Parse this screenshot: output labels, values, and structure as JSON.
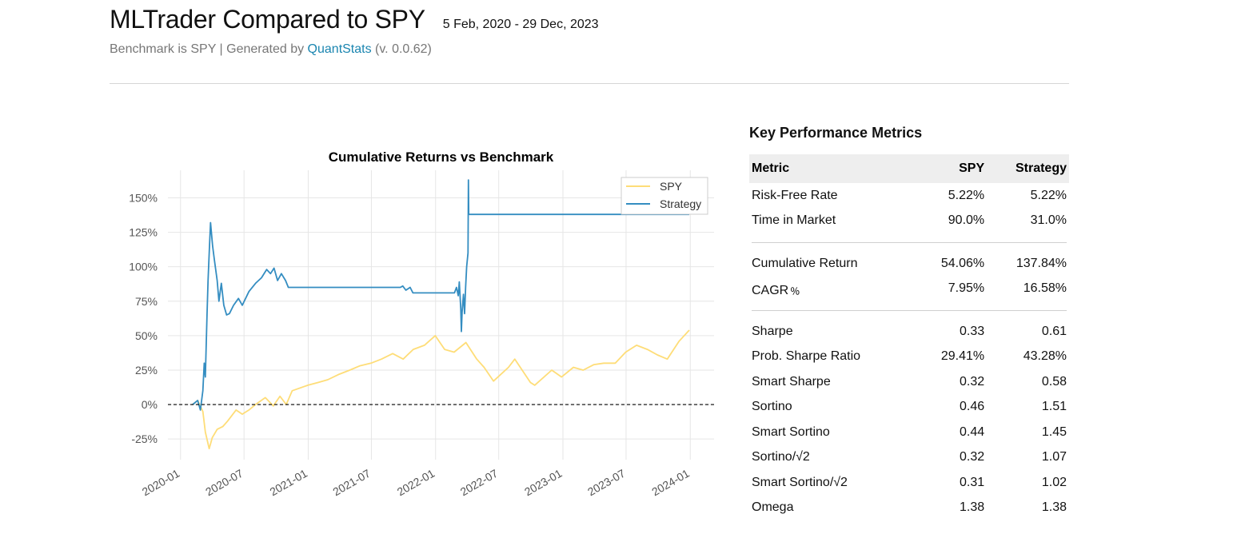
{
  "header": {
    "title": "MLTrader Compared to SPY",
    "date_range": "5 Feb, 2020 - 29 Dec, 2023",
    "subtitle_prefix": "Benchmark is SPY | Generated by ",
    "subtitle_link": "QuantStats",
    "subtitle_suffix": " (v. 0.0.62)"
  },
  "chart_data": {
    "type": "line",
    "title": "Cumulative Returns vs Benchmark",
    "xlabel": "",
    "ylabel": "",
    "x_range": [
      "2020-02-05",
      "2023-12-29"
    ],
    "ylim": [
      -0.4,
      1.7
    ],
    "x_ticks": [
      "2020-01",
      "2020-07",
      "2021-01",
      "2021-07",
      "2022-01",
      "2022-07",
      "2023-01",
      "2023-07",
      "2024-01"
    ],
    "y_ticks": [
      -0.25,
      0,
      0.25,
      0.5,
      0.75,
      1.0,
      1.25,
      1.5
    ],
    "y_tick_labels": [
      "-25%",
      "0%",
      "25%",
      "50%",
      "75%",
      "100%",
      "125%",
      "150%"
    ],
    "grid": true,
    "legend_position": "top-right",
    "baseline": 0,
    "colors": {
      "SPY": "#fedd78",
      "Strategy": "#348dc1",
      "baseline": "#000000"
    },
    "series": [
      {
        "name": "SPY",
        "points": [
          [
            "2020-02-05",
            0.0
          ],
          [
            "2020-02-19",
            0.03
          ],
          [
            "2020-03-05",
            -0.05
          ],
          [
            "2020-03-12",
            -0.2
          ],
          [
            "2020-03-23",
            -0.32
          ],
          [
            "2020-04-01",
            -0.24
          ],
          [
            "2020-04-15",
            -0.18
          ],
          [
            "2020-05-01",
            -0.16
          ],
          [
            "2020-05-15",
            -0.12
          ],
          [
            "2020-06-08",
            -0.04
          ],
          [
            "2020-06-26",
            -0.07
          ],
          [
            "2020-07-15",
            -0.04
          ],
          [
            "2020-08-03",
            0.0
          ],
          [
            "2020-08-31",
            0.05
          ],
          [
            "2020-09-23",
            -0.01
          ],
          [
            "2020-10-12",
            0.06
          ],
          [
            "2020-10-30",
            0.0
          ],
          [
            "2020-11-16",
            0.1
          ],
          [
            "2020-12-31",
            0.14
          ],
          [
            "2021-01-29",
            0.16
          ],
          [
            "2021-02-26",
            0.18
          ],
          [
            "2021-03-31",
            0.22
          ],
          [
            "2021-04-30",
            0.25
          ],
          [
            "2021-05-28",
            0.28
          ],
          [
            "2021-06-30",
            0.3
          ],
          [
            "2021-07-30",
            0.33
          ],
          [
            "2021-08-31",
            0.37
          ],
          [
            "2021-09-30",
            0.33
          ],
          [
            "2021-10-29",
            0.4
          ],
          [
            "2021-11-30",
            0.43
          ],
          [
            "2021-12-31",
            0.5
          ],
          [
            "2022-01-27",
            0.4
          ],
          [
            "2022-02-23",
            0.38
          ],
          [
            "2022-03-29",
            0.45
          ],
          [
            "2022-04-29",
            0.33
          ],
          [
            "2022-05-20",
            0.27
          ],
          [
            "2022-06-16",
            0.17
          ],
          [
            "2022-07-29",
            0.27
          ],
          [
            "2022-08-16",
            0.33
          ],
          [
            "2022-09-30",
            0.16
          ],
          [
            "2022-10-12",
            0.14
          ],
          [
            "2022-11-30",
            0.25
          ],
          [
            "2022-12-28",
            0.2
          ],
          [
            "2023-01-31",
            0.27
          ],
          [
            "2023-02-28",
            0.25
          ],
          [
            "2023-03-31",
            0.29
          ],
          [
            "2023-04-28",
            0.3
          ],
          [
            "2023-05-31",
            0.3
          ],
          [
            "2023-06-30",
            0.38
          ],
          [
            "2023-07-31",
            0.43
          ],
          [
            "2023-08-31",
            0.4
          ],
          [
            "2023-09-29",
            0.36
          ],
          [
            "2023-10-27",
            0.33
          ],
          [
            "2023-11-30",
            0.46
          ],
          [
            "2023-12-29",
            0.54
          ]
        ]
      },
      {
        "name": "Strategy",
        "points": [
          [
            "2020-02-05",
            0.0
          ],
          [
            "2020-02-19",
            0.03
          ],
          [
            "2020-02-27",
            -0.04
          ],
          [
            "2020-03-05",
            0.1
          ],
          [
            "2020-03-09",
            0.3
          ],
          [
            "2020-03-12",
            0.2
          ],
          [
            "2020-03-17",
            0.65
          ],
          [
            "2020-03-20",
            0.9
          ],
          [
            "2020-03-24",
            1.15
          ],
          [
            "2020-03-27",
            1.32
          ],
          [
            "2020-04-02",
            1.15
          ],
          [
            "2020-04-07",
            1.05
          ],
          [
            "2020-04-15",
            0.9
          ],
          [
            "2020-04-20",
            0.75
          ],
          [
            "2020-04-27",
            0.88
          ],
          [
            "2020-05-04",
            0.72
          ],
          [
            "2020-05-12",
            0.65
          ],
          [
            "2020-05-20",
            0.66
          ],
          [
            "2020-06-01",
            0.72
          ],
          [
            "2020-06-15",
            0.77
          ],
          [
            "2020-06-26",
            0.72
          ],
          [
            "2020-07-15",
            0.82
          ],
          [
            "2020-08-03",
            0.88
          ],
          [
            "2020-08-20",
            0.92
          ],
          [
            "2020-09-04",
            0.98
          ],
          [
            "2020-09-15",
            0.95
          ],
          [
            "2020-09-25",
            0.99
          ],
          [
            "2020-10-05",
            0.9
          ],
          [
            "2020-10-16",
            0.95
          ],
          [
            "2020-10-28",
            0.9
          ],
          [
            "2020-11-05",
            0.85
          ],
          [
            "2021-09-22",
            0.85
          ],
          [
            "2021-09-29",
            0.86
          ],
          [
            "2021-10-08",
            0.83
          ],
          [
            "2021-10-20",
            0.85
          ],
          [
            "2021-10-28",
            0.81
          ],
          [
            "2022-02-24",
            0.81
          ],
          [
            "2022-03-02",
            0.85
          ],
          [
            "2022-03-07",
            0.79
          ],
          [
            "2022-03-10",
            0.89
          ],
          [
            "2022-03-14",
            0.7
          ],
          [
            "2022-03-16",
            0.53
          ],
          [
            "2022-03-18",
            0.67
          ],
          [
            "2022-03-22",
            0.8
          ],
          [
            "2022-03-25",
            0.66
          ],
          [
            "2022-03-28",
            0.85
          ],
          [
            "2022-03-31",
            1.0
          ],
          [
            "2022-04-04",
            1.1
          ],
          [
            "2022-04-05",
            1.63
          ],
          [
            "2022-04-06",
            1.38
          ],
          [
            "2023-12-29",
            1.38
          ]
        ]
      }
    ]
  },
  "metrics": {
    "title": "Key Performance Metrics",
    "columns": [
      "Metric",
      "SPY",
      "Strategy"
    ],
    "groups": [
      [
        [
          "Risk-Free Rate",
          "5.22%",
          "5.22%"
        ],
        [
          "Time in Market",
          "90.0%",
          "31.0%"
        ]
      ],
      [
        [
          "Cumulative Return",
          "54.06%",
          "137.84%"
        ],
        [
          "CAGR﹪",
          "7.95%",
          "16.58%"
        ]
      ],
      [
        [
          "Sharpe",
          "0.33",
          "0.61"
        ],
        [
          "Prob. Sharpe Ratio",
          "29.41%",
          "43.28%"
        ],
        [
          "Smart Sharpe",
          "0.32",
          "0.58"
        ],
        [
          "Sortino",
          "0.46",
          "1.51"
        ],
        [
          "Smart Sortino",
          "0.44",
          "1.45"
        ],
        [
          "Sortino/√2",
          "0.32",
          "1.07"
        ],
        [
          "Smart Sortino/√2",
          "0.31",
          "1.02"
        ],
        [
          "Omega",
          "1.38",
          "1.38"
        ]
      ]
    ]
  }
}
